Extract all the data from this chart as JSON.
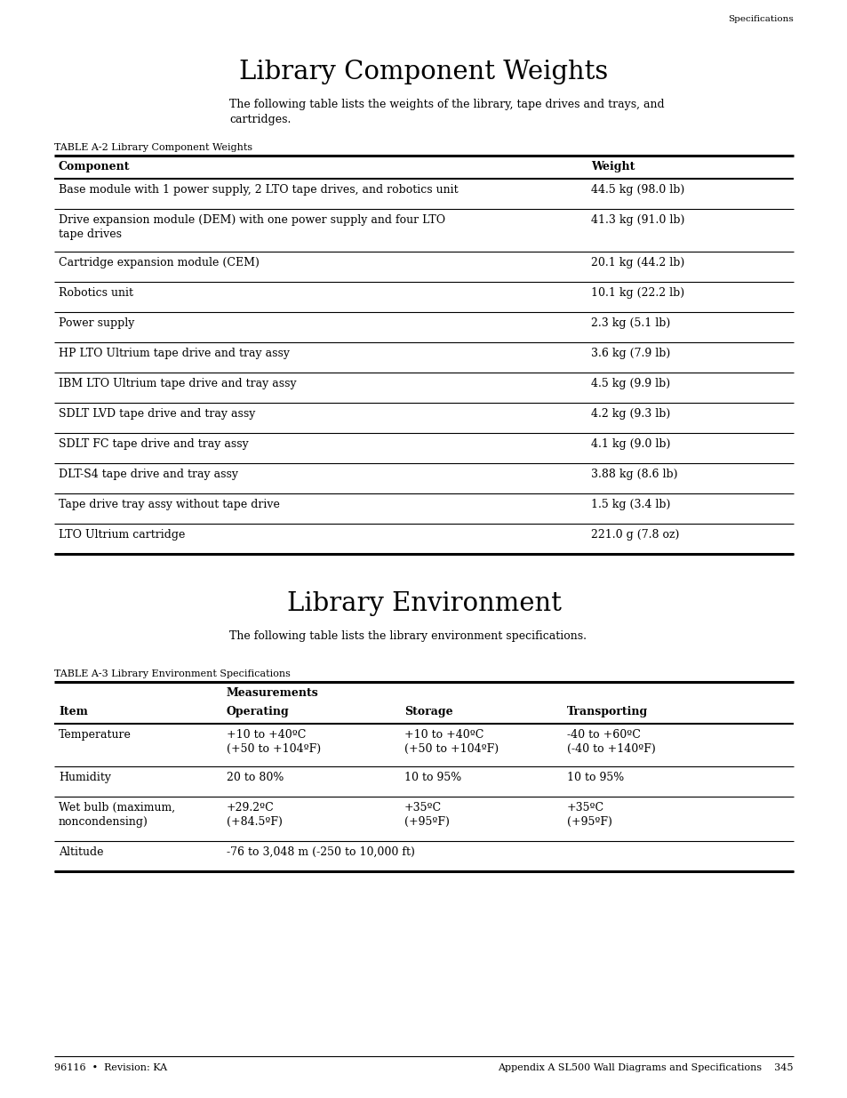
{
  "page_title1": "Library Component Weights",
  "page_subtitle1": "The following table lists the weights of the library, tape drives and trays, and\ncartridges.",
  "table1_label": "TABLE A-2 Library Component Weights",
  "table1_headers": [
    "Component",
    "Weight"
  ],
  "table1_rows": [
    [
      "Base module with 1 power supply, 2 LTO tape drives, and robotics unit",
      "44.5 kg (98.0 lb)"
    ],
    [
      "Drive expansion module (DEM) with one power supply and four LTO\ntape drives",
      "41.3 kg (91.0 lb)"
    ],
    [
      "Cartridge expansion module (CEM)",
      "20.1 kg (44.2 lb)"
    ],
    [
      "Robotics unit",
      "10.1 kg (22.2 lb)"
    ],
    [
      "Power supply",
      "2.3 kg (5.1 lb)"
    ],
    [
      "HP LTO Ultrium tape drive and tray assy",
      "3.6 kg (7.9 lb)"
    ],
    [
      "IBM LTO Ultrium tape drive and tray assy",
      "4.5 kg (9.9 lb)"
    ],
    [
      "SDLT LVD tape drive and tray assy",
      "4.2 kg (9.3 lb)"
    ],
    [
      "SDLT FC tape drive and tray assy",
      "4.1 kg (9.0 lb)"
    ],
    [
      "DLT-S4 tape drive and tray assy",
      "3.88 kg (8.6 lb)"
    ],
    [
      "Tape drive tray assy without tape drive",
      "1.5 kg (3.4 lb)"
    ],
    [
      "LTO Ultrium cartridge",
      "221.0 g (7.8 oz)"
    ]
  ],
  "table1_row_multiline": [
    false,
    true,
    false,
    false,
    false,
    false,
    false,
    false,
    false,
    false,
    false,
    false
  ],
  "page_title2": "Library Environment",
  "page_subtitle2": "The following table lists the library environment specifications.",
  "table2_label": "TABLE A-3 Library Environment Specifications",
  "table2_headers": [
    "Item",
    "Operating",
    "Storage",
    "Transporting"
  ],
  "table2_subheader": "Measurements",
  "table2_rows": [
    [
      "Temperature",
      "+10 to +40ºC\n(+50 to +104ºF)",
      "+10 to +40ºC\n(+50 to +104ºF)",
      "-40 to +60ºC\n(-40 to +140ºF)"
    ],
    [
      "Humidity",
      "20 to 80%",
      "10 to 95%",
      "10 to 95%"
    ],
    [
      "Wet bulb (maximum,\nnoncondensing)",
      "+29.2ºC\n(+84.5ºF)",
      "+35ºC\n(+95ºF)",
      "+35ºC\n(+95ºF)"
    ],
    [
      "Altitude",
      "-76 to 3,048 m (-250 to 10,000 ft)",
      "",
      ""
    ]
  ],
  "footer_left": "96116  •  Revision: KA",
  "footer_right": "Appendix A SL500 Wall Diagrams and Specifications    345",
  "header_right": "Specifications",
  "bg_color": "#ffffff",
  "text_color": "#000000"
}
